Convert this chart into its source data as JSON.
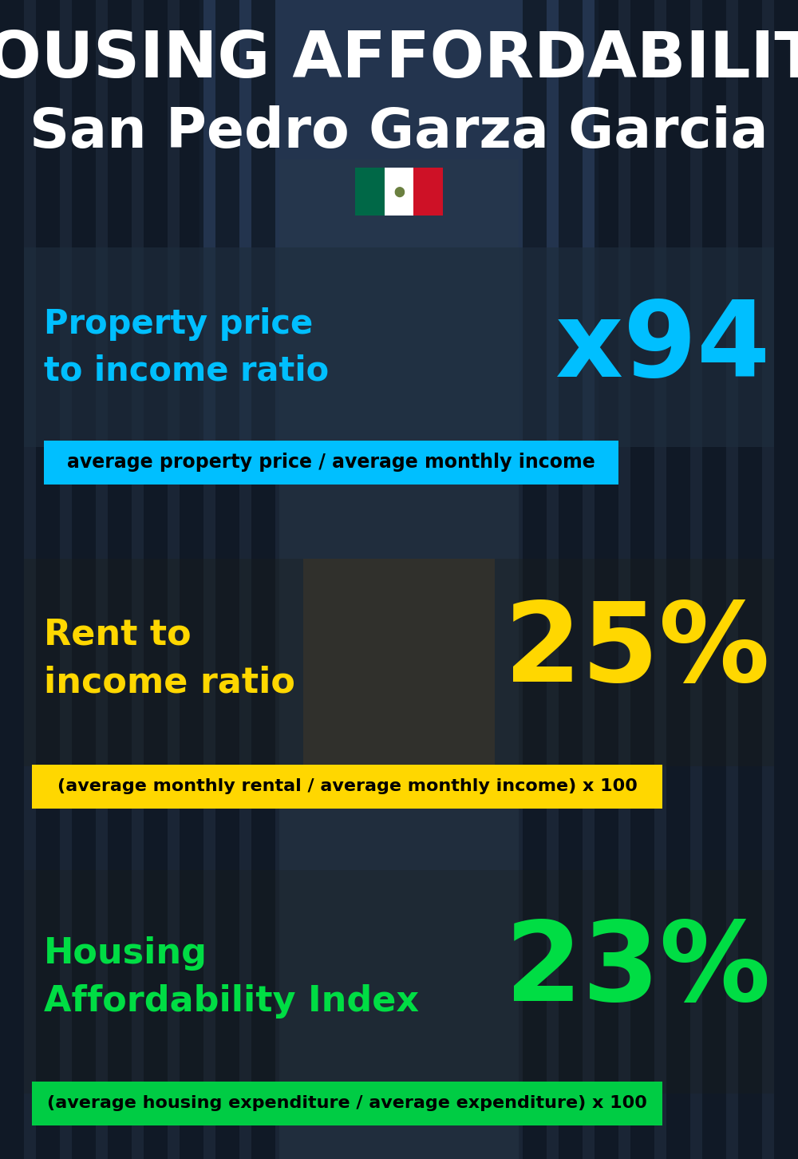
{
  "title_line1": "HOUSING AFFORDABILITY",
  "title_line2": "San Pedro Garza Garcia",
  "bg_color": "#0d1b2a",
  "section1_label": "Property price\nto income ratio",
  "section1_value": "x94",
  "section1_label_color": "#00bfff",
  "section1_value_color": "#00bfff",
  "section1_formula": "average property price / average monthly income",
  "section1_formula_bg": "#00bfff",
  "section2_label": "Rent to\nincome ratio",
  "section2_value": "25%",
  "section2_label_color": "#ffd700",
  "section2_value_color": "#ffd700",
  "section2_formula": "(average monthly rental / average monthly income) x 100",
  "section2_formula_bg": "#ffd700",
  "section3_label": "Housing\nAffordability Index",
  "section3_value": "23%",
  "section3_label_color": "#00dd44",
  "section3_value_color": "#00dd44",
  "section3_formula": "(average housing expenditure / average expenditure) x 100",
  "section3_formula_bg": "#00cc44",
  "title_color": "#ffffff",
  "formula_text_color": "#000000",
  "flag_green": "#006847",
  "flag_white": "#ffffff",
  "flag_red": "#ce1126"
}
